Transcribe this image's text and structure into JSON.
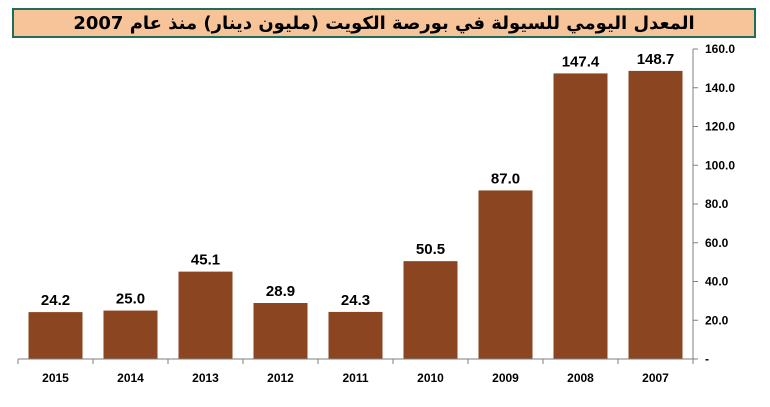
{
  "chart_data": {
    "type": "bar",
    "title": "المعدل اليومي للسيولة في بورصة الكويت (مليون دينار) منذ عام 2007",
    "categories": [
      "2015",
      "2014",
      "2013",
      "2012",
      "2011",
      "2010",
      "2009",
      "2008",
      "2007"
    ],
    "values": [
      24.2,
      25.0,
      45.1,
      28.9,
      24.3,
      50.5,
      87.0,
      147.4,
      148.7
    ],
    "value_labels": [
      "24.2",
      "25.0",
      "45.1",
      "28.9",
      "24.3",
      "50.5",
      "87.0",
      "147.4",
      "148.7"
    ],
    "y_ticks": [
      0,
      20,
      40,
      60,
      80,
      100,
      120,
      140,
      160
    ],
    "y_tick_labels": [
      "-",
      "20.0",
      "40.0",
      "60.0",
      "80.0",
      "100.0",
      "120.0",
      "140.0",
      "160.0"
    ],
    "ylim": [
      0,
      160
    ],
    "y_axis_side": "right",
    "grid": false,
    "bar_color": "#8b4521"
  }
}
